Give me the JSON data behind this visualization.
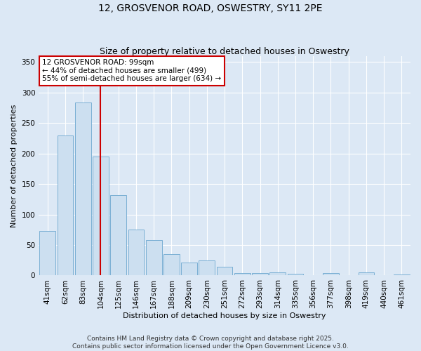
{
  "title": "12, GROSVENOR ROAD, OSWESTRY, SY11 2PE",
  "subtitle": "Size of property relative to detached houses in Oswestry",
  "xlabel": "Distribution of detached houses by size in Oswestry",
  "ylabel": "Number of detached properties",
  "categories": [
    "41sqm",
    "62sqm",
    "83sqm",
    "104sqm",
    "125sqm",
    "146sqm",
    "167sqm",
    "188sqm",
    "209sqm",
    "230sqm",
    "251sqm",
    "272sqm",
    "293sqm",
    "314sqm",
    "335sqm",
    "356sqm",
    "377sqm",
    "398sqm",
    "419sqm",
    "440sqm",
    "461sqm"
  ],
  "values": [
    73,
    230,
    283,
    195,
    132,
    75,
    58,
    35,
    21,
    25,
    14,
    4,
    4,
    5,
    3,
    1,
    4,
    1,
    5,
    1,
    2
  ],
  "bar_color": "#ccdff0",
  "bar_edge_color": "#7aafd4",
  "vline_x": 3.0,
  "vline_color": "#cc0000",
  "annotation_title": "12 GROSVENOR ROAD: 99sqm",
  "annotation_line1": "← 44% of detached houses are smaller (499)",
  "annotation_line2": "55% of semi-detached houses are larger (634) →",
  "annotation_box_facecolor": "#ffffff",
  "annotation_box_edgecolor": "#cc0000",
  "ylim": [
    0,
    360
  ],
  "yticks": [
    0,
    50,
    100,
    150,
    200,
    250,
    300,
    350
  ],
  "fig_facecolor": "#dce8f5",
  "plot_facecolor": "#dce8f5",
  "grid_color": "#ffffff",
  "title_fontsize": 10,
  "subtitle_fontsize": 9,
  "axis_label_fontsize": 8,
  "tick_fontsize": 7.5,
  "annotation_fontsize": 7.5,
  "footer_fontsize": 6.5,
  "footer_line1": "Contains HM Land Registry data © Crown copyright and database right 2025.",
  "footer_line2": "Contains public sector information licensed under the Open Government Licence v3.0."
}
